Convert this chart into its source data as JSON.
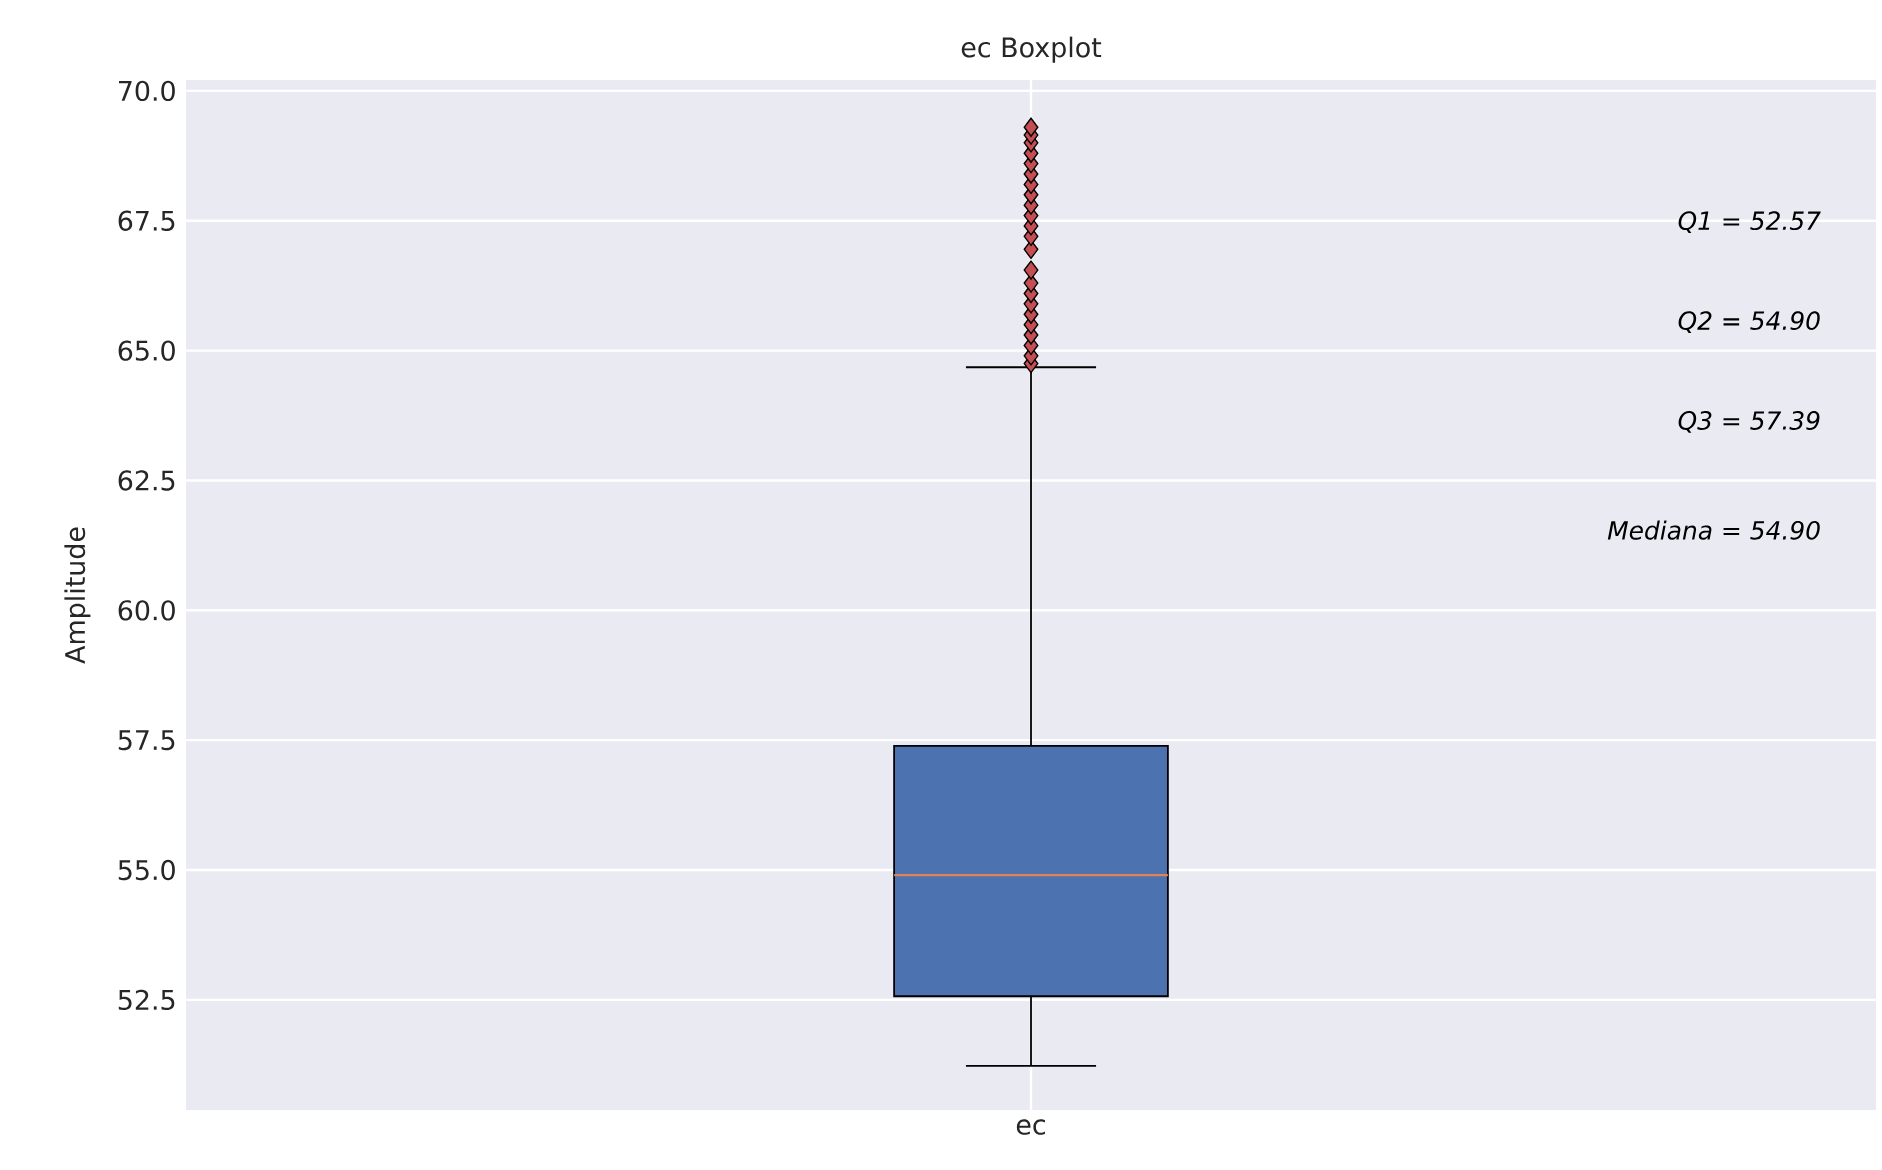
{
  "chart_data": {
    "type": "box",
    "title": "ec Boxplot",
    "ylabel": "Amplitude",
    "categories": [
      "ec"
    ],
    "color": "#4c72b0",
    "boxes": [
      {
        "low": 51.23,
        "q1": 52.57,
        "median": 54.9,
        "q3": 57.39,
        "high": 64.68,
        "outliers": [
          64.75,
          64.9,
          65.1,
          65.3,
          65.5,
          65.7,
          65.9,
          66.1,
          66.3,
          66.55,
          66.95,
          67.2,
          67.4,
          67.6,
          67.8,
          68.0,
          68.2,
          68.4,
          68.6,
          68.8,
          69.0,
          69.15,
          69.3
        ]
      }
    ],
    "ylim": [
      50.38,
      70.21
    ],
    "yticks": [
      {
        "value": 52.5,
        "label": "52.5"
      },
      {
        "value": 55,
        "label": "55.0"
      },
      {
        "value": 57.5,
        "label": "57.5"
      },
      {
        "value": 60,
        "label": "60.0"
      },
      {
        "value": 62.5,
        "label": "62.5"
      },
      {
        "value": 65,
        "label": "65.0"
      },
      {
        "value": 67.5,
        "label": "67.5"
      },
      {
        "value": 70,
        "label": "70.0"
      }
    ],
    "grid": true,
    "marker": "diamond",
    "annotations": [
      "Q1 = 52.57",
      "Q2 = 54.90",
      "Q3 = 57.39",
      "Mediana = 54.90"
    ]
  }
}
